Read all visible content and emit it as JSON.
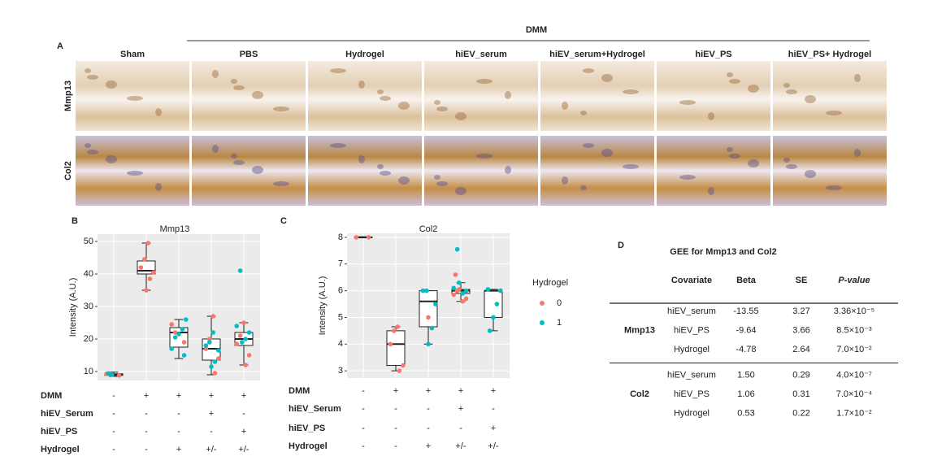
{
  "panel_a": {
    "label": "A",
    "group_label": "DMM",
    "columns": [
      "Sham",
      "PBS",
      "Hydrogel",
      "hiEV_serum",
      "hiEV_serum+Hydrogel",
      "hiEV_PS",
      "hiEV_PS+ Hydrogel"
    ],
    "rows": [
      "Mmp13",
      "Col2"
    ]
  },
  "chart_data": [
    {
      "type": "box",
      "panel": "B",
      "title": "Mmp13",
      "y_label": "Intensity (A.U.)",
      "ylim": [
        7.25,
        52.25
      ],
      "yticks": [
        10,
        20,
        30,
        40,
        50
      ],
      "grid": true,
      "boxes": [
        {
          "min": 8.5,
          "q1": 8.8,
          "median": 9,
          "q3": 9.3,
          "max": 9.8
        },
        {
          "min": 35,
          "q1": 40,
          "median": 41,
          "q3": 44,
          "max": 49.5
        },
        {
          "min": 14,
          "q1": 17.5,
          "median": 22,
          "q3": 23.5,
          "max": 26
        },
        {
          "min": 9,
          "q1": 13.5,
          "median": 17,
          "q3": 20,
          "max": 27
        },
        {
          "min": 12,
          "q1": 18,
          "median": 20,
          "q3": 22,
          "max": 25
        }
      ],
      "series": [
        {
          "name": "0",
          "color": "#f8766d",
          "groups": [
            0,
            0,
            1,
            1,
            1,
            1,
            1,
            1,
            2,
            2,
            2,
            3,
            3,
            3,
            3,
            3,
            4,
            4,
            4,
            4,
            4
          ],
          "values": [
            9.3,
            8.8,
            49.5,
            44.5,
            42,
            40.5,
            38.5,
            35,
            22,
            24.5,
            19,
            27,
            20,
            17,
            14,
            9.5,
            25,
            21,
            18.5,
            15,
            12
          ]
        },
        {
          "name": "1",
          "color": "#00bfc4",
          "groups": [
            0,
            0,
            2,
            2,
            2,
            2,
            2,
            2,
            3,
            3,
            3,
            3,
            3,
            3,
            4,
            4,
            4,
            4,
            4
          ],
          "values": [
            9.0,
            9.4,
            26,
            23,
            21.5,
            20.5,
            17,
            15,
            22,
            19,
            18,
            16.5,
            13,
            11.5,
            41,
            24,
            22,
            20,
            19
          ]
        }
      ],
      "conditions": [
        {
          "name": "DMM",
          "values": [
            "-",
            "+",
            "+",
            "+",
            "+"
          ]
        },
        {
          "name": "hiEV_Serum",
          "values": [
            "-",
            "-",
            "-",
            "+",
            "-"
          ]
        },
        {
          "name": "hiEV_PS",
          "values": [
            "-",
            "-",
            "-",
            "-",
            "+"
          ]
        },
        {
          "name": "Hydrogel",
          "values": [
            "-",
            "-",
            "+",
            "+/-",
            "+/-"
          ]
        }
      ]
    },
    {
      "type": "box",
      "panel": "C",
      "title": "Col2",
      "y_label": "Intensity (A.U.)",
      "ylim": [
        2.73,
        8.15
      ],
      "yticks": [
        3,
        4,
        5,
        6,
        7,
        8
      ],
      "grid": true,
      "legend_title": "Hydrogel",
      "boxes": [
        {
          "min": 7.98,
          "q1": 8.0,
          "median": 8.0,
          "q3": 8.0,
          "max": 8.02
        },
        {
          "min": 3.0,
          "q1": 3.2,
          "median": 4.0,
          "q3": 4.5,
          "max": 4.65
        },
        {
          "min": 4.0,
          "q1": 4.65,
          "median": 5.6,
          "q3": 6.0,
          "max": 6.0
        },
        {
          "min": 5.6,
          "q1": 5.9,
          "median": 6.0,
          "q3": 6.05,
          "max": 6.3
        },
        {
          "min": 4.5,
          "q1": 5.0,
          "median": 6.0,
          "q3": 6.0,
          "max": 6.05
        }
      ],
      "series": [
        {
          "name": "0",
          "color": "#f8766d",
          "groups": [
            0,
            0,
            1,
            1,
            1,
            1,
            1,
            2,
            3,
            3,
            3,
            3,
            3,
            3,
            4
          ],
          "values": [
            8.0,
            8.0,
            4.65,
            4.5,
            4.0,
            3.2,
            3.0,
            5.0,
            6.0,
            5.85,
            5.7,
            5.6,
            6.05,
            6.6,
            6.0
          ]
        },
        {
          "name": "1",
          "color": "#00bfc4",
          "groups": [
            2,
            2,
            2,
            2,
            2,
            3,
            3,
            3,
            3,
            3,
            4,
            4,
            4,
            4,
            4
          ],
          "values": [
            6.0,
            6.0,
            5.5,
            4.6,
            4.0,
            7.55,
            6.1,
            6.0,
            5.9,
            6.3,
            6.05,
            6.0,
            5.5,
            5.0,
            4.5
          ]
        }
      ],
      "conditions": [
        {
          "name": "DMM",
          "values": [
            "-",
            "+",
            "+",
            "+",
            "+"
          ]
        },
        {
          "name": "hiEV_Serum",
          "values": [
            "-",
            "-",
            "-",
            "+",
            "-"
          ]
        },
        {
          "name": "hiEV_PS",
          "values": [
            "-",
            "-",
            "-",
            "-",
            "+"
          ]
        },
        {
          "name": "Hydrogel",
          "values": [
            "-",
            "-",
            "+",
            "+/-",
            "+/-"
          ]
        }
      ]
    }
  ],
  "table_d": {
    "label": "D",
    "title": "GEE for Mmp13 and Col2",
    "headers": [
      "Covariate",
      "Beta",
      "SE",
      "P-value"
    ],
    "groups": [
      {
        "name": "Mmp13",
        "rows": [
          [
            "hiEV_serum",
            "-13.55",
            "3.27",
            "3.36×10⁻⁵"
          ],
          [
            "hiEV_PS",
            "-9.64",
            "3.66",
            "8.5×10⁻³"
          ],
          [
            "Hydrogel",
            "-4.78",
            "2.64",
            "7.0×10⁻²"
          ]
        ]
      },
      {
        "name": "Col2",
        "rows": [
          [
            "hiEV_serum",
            "1.50",
            "0.29",
            "4.0×10⁻⁷"
          ],
          [
            "hiEV_PS",
            "1.06",
            "0.31",
            "7.0×10⁻⁴"
          ],
          [
            "Hydrogel",
            "0.53",
            "0.22",
            "1.7×10⁻²"
          ]
        ]
      }
    ]
  }
}
